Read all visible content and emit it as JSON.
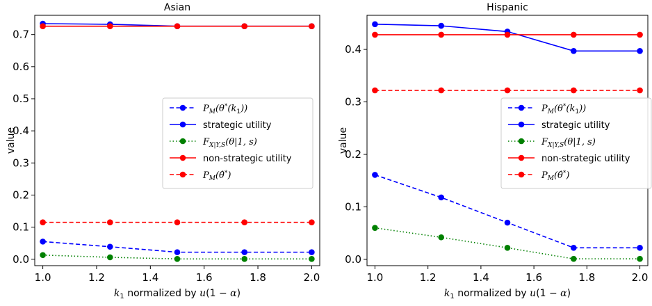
{
  "chart_data": [
    {
      "type": "line",
      "title": "Asian",
      "xlabel": "k1 normalized by u(1 − α)",
      "ylabel": "value",
      "x": [
        1.0,
        1.25,
        1.5,
        1.75,
        2.0
      ],
      "xticks": [
        "1.0",
        "1.2",
        "1.4",
        "1.6",
        "1.8",
        "2.0"
      ],
      "yticks": [
        "0.0",
        "0.1",
        "0.2",
        "0.3",
        "0.4",
        "0.5",
        "0.6",
        "0.7"
      ],
      "xlim": [
        0.97,
        2.03
      ],
      "ylim": [
        -0.02,
        0.76
      ],
      "legend_position": "center-right",
      "grid": false,
      "series": [
        {
          "name": "P_M(θ*(k1))",
          "color": "#0000ff",
          "style": "dashed",
          "values": [
            0.055,
            0.039,
            0.022,
            0.022,
            0.022
          ]
        },
        {
          "name": "strategic utility",
          "color": "#0000ff",
          "style": "solid",
          "values": [
            0.734,
            0.732,
            0.726,
            0.726,
            0.726
          ]
        },
        {
          "name": "F_{X|Y,S}(θ|1, s)",
          "color": "#008000",
          "style": "dotted",
          "values": [
            0.013,
            0.006,
            0.001,
            0.001,
            0.001
          ]
        },
        {
          "name": "non-strategic utility",
          "color": "#ff0000",
          "style": "solid",
          "values": [
            0.726,
            0.726,
            0.726,
            0.726,
            0.726
          ]
        },
        {
          "name": "P_M(θ̂*)",
          "color": "#ff0000",
          "style": "dashed",
          "values": [
            0.115,
            0.115,
            0.115,
            0.115,
            0.115
          ]
        }
      ]
    },
    {
      "type": "line",
      "title": "Hispanic",
      "xlabel": "k1 normalized by u(1 − α)",
      "ylabel": "value",
      "x": [
        1.0,
        1.25,
        1.5,
        1.75,
        2.0
      ],
      "xticks": [
        "1.0",
        "1.2",
        "1.4",
        "1.6",
        "1.8",
        "2.0"
      ],
      "yticks": [
        "0.0",
        "0.1",
        "0.2",
        "0.3",
        "0.4"
      ],
      "xlim": [
        0.97,
        2.03
      ],
      "ylim": [
        -0.012,
        0.465
      ],
      "legend_position": "center-right",
      "grid": false,
      "series": [
        {
          "name": "P_M(θ*(k1))",
          "color": "#0000ff",
          "style": "dashed",
          "values": [
            0.161,
            0.118,
            0.07,
            0.022,
            0.022
          ]
        },
        {
          "name": "strategic utility",
          "color": "#0000ff",
          "style": "solid",
          "values": [
            0.448,
            0.445,
            0.434,
            0.397,
            0.397
          ]
        },
        {
          "name": "F_{X|Y,S}(θ|1, s)",
          "color": "#008000",
          "style": "dotted",
          "values": [
            0.06,
            0.042,
            0.022,
            0.001,
            0.001
          ]
        },
        {
          "name": "non-strategic utility",
          "color": "#ff0000",
          "style": "solid",
          "values": [
            0.428,
            0.428,
            0.428,
            0.428,
            0.428
          ]
        },
        {
          "name": "P_M(θ̂*)",
          "color": "#ff0000",
          "style": "dashed",
          "values": [
            0.322,
            0.322,
            0.322,
            0.322,
            0.322
          ]
        }
      ]
    }
  ]
}
